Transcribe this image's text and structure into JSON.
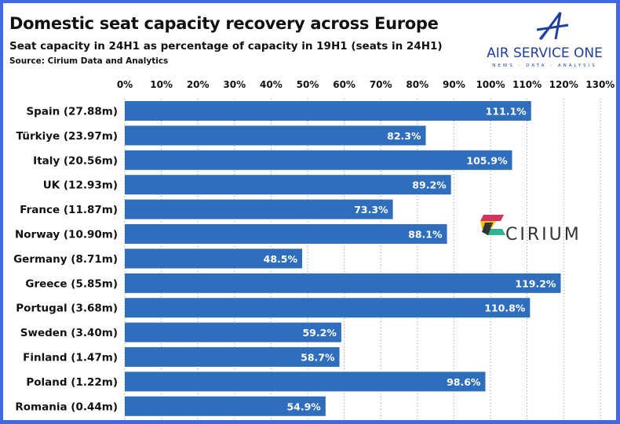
{
  "title": "Domestic seat capacity recovery across Europe",
  "subtitle": "Seat capacity in 24H1 as percentage of capacity in 19H1 (seats in 24H1)",
  "source": "Source: Cirium Data and Analytics",
  "logos": {
    "air_service_one": "AIR SERVICE ONE",
    "air_service_one_tagline": "NEWS - DATA - ANALYSIS",
    "cirium": "CIRIUM"
  },
  "colors": {
    "bar": "#2f6ebd",
    "frame": "#4169e1",
    "brand_blue": "#1f3f9f"
  },
  "chart_data": {
    "type": "bar",
    "orientation": "horizontal",
    "categories": [
      "Spain (27.88m)",
      "Türkiye (23.97m)",
      "Italy (20.56m)",
      "UK (12.93m)",
      "France (11.87m)",
      "Norway (10.90m)",
      "Germany (8.71m)",
      "Greece (5.85m)",
      "Portugal (3.68m)",
      "Sweden (3.40m)",
      "Finland (1.47m)",
      "Poland (1.22m)",
      "Romania (0.44m)"
    ],
    "values": [
      111.1,
      82.3,
      105.9,
      89.2,
      73.3,
      88.1,
      48.5,
      119.2,
      110.8,
      59.2,
      58.7,
      98.6,
      54.9
    ],
    "data_labels": [
      "111.1%",
      "82.3%",
      "105.9%",
      "89.2%",
      "73.3%",
      "88.1%",
      "48.5%",
      "119.2%",
      "110.8%",
      "59.2%",
      "58.7%",
      "98.6%",
      "54.9%"
    ],
    "xlim": [
      0,
      130
    ],
    "xticks": [
      "0%",
      "10%",
      "20%",
      "30%",
      "40%",
      "50%",
      "60%",
      "70%",
      "80%",
      "90%",
      "100%",
      "110%",
      "120%",
      "130%"
    ],
    "x_axis_position": "top",
    "grid": "vertical dotted"
  }
}
